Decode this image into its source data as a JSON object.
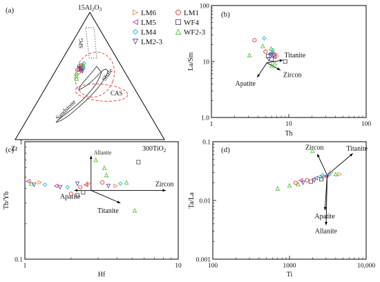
{
  "colors": {
    "LM6": "#f28c3a",
    "LM1": "#e03a3a",
    "LM5": "#c2378a",
    "WF4": "#555555",
    "LM4": "#1fb6d8",
    "LM2-3": "#6a4aa8",
    "WF2-3": "#5bbf3a",
    "field": "#333333",
    "dashed": "#e03a3a",
    "dotted": "#555555"
  },
  "legend": {
    "entries": [
      {
        "label": "LM6",
        "marker": "triangle-right",
        "color": "#f28c3a"
      },
      {
        "label": "LM1",
        "marker": "circle",
        "color": "#e03a3a"
      },
      {
        "label": "LM5",
        "marker": "triangle-left",
        "color": "#c2378a"
      },
      {
        "label": "WF4",
        "marker": "square",
        "color": "#555555"
      },
      {
        "label": "LM4",
        "marker": "diamond",
        "color": "#1fb6d8"
      },
      {
        "label": "WF2-3",
        "marker": "triangle-up",
        "color": "#5bbf3a"
      },
      {
        "label": "LM2-3",
        "marker": "triangle-down",
        "color": "#6a4aa8"
      }
    ]
  },
  "chart_data": [
    {
      "panel": "(a)",
      "type": "ternary",
      "apices": {
        "top": "15Al2O3",
        "left": "Zr",
        "right": "300TiO2"
      },
      "fields": [
        "SPG",
        "Shale",
        "CAS",
        "Sandstone"
      ],
      "samples": [
        {
          "series": "LM6",
          "points": [
            [
              58,
              26,
              16
            ],
            [
              57,
              27,
              16
            ],
            [
              55,
              28,
              17
            ],
            [
              56,
              26,
              18
            ]
          ]
        },
        {
          "series": "LM1",
          "points": [
            [
              55,
              30,
              15
            ],
            [
              53,
              31,
              16
            ]
          ]
        },
        {
          "series": "LM5",
          "points": [
            [
              57,
              28,
              15
            ],
            [
              54,
              29,
              17
            ],
            [
              56,
              29,
              15
            ]
          ]
        },
        {
          "series": "WF4",
          "points": [
            [
              58,
              27,
              15
            ],
            [
              56,
              28,
              16
            ]
          ]
        },
        {
          "series": "LM4",
          "points": [
            [
              60,
              24,
              16
            ],
            [
              57,
              26,
              17
            ]
          ]
        },
        {
          "series": "LM2-3",
          "points": [
            [
              56,
              29,
              15
            ],
            [
              54,
              28,
              18
            ]
          ]
        },
        {
          "series": "WF2-3",
          "points": [
            [
              52,
              33,
              15
            ],
            [
              50,
              34,
              16
            ],
            [
              59,
              25,
              16
            ],
            [
              48,
              35,
              17
            ]
          ]
        }
      ]
    },
    {
      "panel": "(b)",
      "type": "scatter",
      "x_scale": "log",
      "y_scale": "log",
      "xlabel": "Th",
      "ylabel": "La/Sm",
      "xlim": [
        1,
        100
      ],
      "ylim": [
        1,
        100
      ],
      "xticks": [
        "1",
        "10",
        "100"
      ],
      "yticks": [
        "1.0",
        "10",
        "100"
      ],
      "vectors": [
        {
          "label": "Titanite",
          "from": [
            5.2,
            9.5
          ],
          "to": [
            8.4,
            10.6
          ]
        },
        {
          "label": "Zircon",
          "from": [
            5.2,
            9.5
          ],
          "to": [
            7.8,
            7.0
          ]
        },
        {
          "label": "Apatite",
          "from": [
            5.2,
            9.5
          ],
          "to": [
            3.9,
            5.2
          ]
        }
      ],
      "series": [
        {
          "name": "LM6",
          "points": [
            [
              6.8,
              13.5
            ],
            [
              7.0,
              12.5
            ],
            [
              6.3,
              14.5
            ]
          ]
        },
        {
          "name": "LM1",
          "points": [
            [
              3.6,
              24
            ],
            [
              5.0,
              15
            ]
          ]
        },
        {
          "name": "LM5",
          "points": [
            [
              6.5,
              12
            ],
            [
              5.8,
              14
            ]
          ]
        },
        {
          "name": "WF4",
          "points": [
            [
              6.0,
              11
            ],
            [
              9.0,
              10
            ],
            [
              5.4,
              12.5
            ]
          ]
        },
        {
          "name": "LM4",
          "points": [
            [
              4.8,
              26
            ],
            [
              6.2,
              16
            ],
            [
              5.7,
              13.5
            ],
            [
              6.1,
              14.2
            ]
          ]
        },
        {
          "name": "LM2-3",
          "points": [
            [
              6.0,
              13
            ],
            [
              5.5,
              11
            ],
            [
              6.4,
              12.8
            ]
          ]
        },
        {
          "name": "WF2-3",
          "points": [
            [
              3.1,
              13
            ],
            [
              4.6,
              19
            ],
            [
              6.0,
              8.5
            ],
            [
              6.6,
              9.3
            ],
            [
              5.9,
              17
            ]
          ]
        }
      ]
    },
    {
      "panel": "(c)",
      "type": "scatter",
      "x_scale": "log",
      "y_scale": "log",
      "xlabel": "Hf",
      "ylabel": "Tb/Yb",
      "xlim": [
        1,
        10
      ],
      "ylim": [
        0.1,
        1
      ],
      "xticks": [
        "1",
        "10"
      ],
      "yticks": [
        "0.1",
        "1"
      ],
      "vectors": [
        {
          "label": "Allanite",
          "from": [
            2.7,
            0.385
          ],
          "to": [
            2.7,
            0.76
          ]
        },
        {
          "label": "Apatite",
          "from": [
            2.7,
            0.385
          ],
          "to": [
            2.1,
            0.385
          ]
        },
        {
          "label": "Titanite",
          "from": [
            2.7,
            0.385
          ],
          "to": [
            4.2,
            0.3
          ]
        },
        {
          "label": "Zircon",
          "from": [
            2.7,
            0.385
          ],
          "to": [
            8.3,
            0.385
          ]
        }
      ],
      "series": [
        {
          "name": "LM6",
          "points": [
            [
              1.25,
              0.45
            ],
            [
              2.6,
              0.44
            ],
            [
              3.9,
              0.42
            ]
          ]
        },
        {
          "name": "LM1",
          "points": [
            [
              2.3,
              0.41
            ],
            [
              2.0,
              0.36
            ],
            [
              3.2,
              0.45
            ]
          ]
        },
        {
          "name": "LM5",
          "points": [
            [
              1.05,
              0.46
            ],
            [
              1.6,
              0.42
            ],
            [
              2.5,
              0.43
            ]
          ]
        },
        {
          "name": "WF4",
          "points": [
            [
              2.2,
              0.35
            ],
            [
              5.5,
              0.67
            ],
            [
              2.4,
              0.37
            ]
          ]
        },
        {
          "name": "LM4",
          "points": [
            [
              1.35,
              0.43
            ],
            [
              1.9,
              0.41
            ],
            [
              4.2,
              0.44
            ]
          ]
        },
        {
          "name": "LM2-3",
          "points": [
            [
              1.15,
              0.43
            ],
            [
              1.7,
              0.41
            ],
            [
              2.2,
              0.44
            ],
            [
              3.5,
              0.42
            ]
          ]
        },
        {
          "name": "WF2-3",
          "points": [
            [
              1.1,
              0.44
            ],
            [
              2.9,
              0.7
            ],
            [
              3.4,
              0.52
            ],
            [
              4.6,
              0.45
            ],
            [
              5.2,
              0.26
            ],
            [
              3.3,
              0.6
            ]
          ]
        }
      ]
    },
    {
      "panel": "(d)",
      "type": "scatter",
      "x_scale": "log",
      "y_scale": "log",
      "xlabel": "Ti",
      "ylabel": "Ta/La",
      "xlim": [
        100,
        10000
      ],
      "ylim": [
        0.001,
        0.1
      ],
      "xticks": [
        "100",
        "1000",
        "10,000"
      ],
      "yticks": [
        "0.001",
        "0.01",
        "0.1"
      ],
      "vectors": [
        {
          "label": "Zircon",
          "from": [
            3100,
            0.027
          ],
          "to": [
            2300,
            0.062
          ]
        },
        {
          "label": "Titanite",
          "from": [
            3100,
            0.027
          ],
          "to": [
            6700,
            0.063
          ]
        },
        {
          "label": "Apatite",
          "from": [
            3100,
            0.027
          ],
          "to": [
            2900,
            0.0068
          ]
        },
        {
          "label": "Allanite",
          "from": [
            3100,
            0.027
          ],
          "to": [
            3000,
            0.0038
          ]
        }
      ],
      "series": [
        {
          "name": "LM6",
          "points": [
            [
              3500,
              0.03
            ],
            [
              4500,
              0.028
            ],
            [
              2800,
              0.025
            ]
          ]
        },
        {
          "name": "LM1",
          "points": [
            [
              1200,
              0.02
            ],
            [
              1700,
              0.022
            ]
          ]
        },
        {
          "name": "LM5",
          "points": [
            [
              1400,
              0.022
            ],
            [
              2200,
              0.024
            ],
            [
              3000,
              0.026
            ]
          ]
        },
        {
          "name": "WF4",
          "points": [
            [
              1900,
              0.021
            ],
            [
              2600,
              0.023
            ]
          ]
        },
        {
          "name": "LM4",
          "points": [
            [
              2700,
              0.027
            ],
            [
              3300,
              0.028
            ],
            [
              2500,
              0.025
            ]
          ]
        },
        {
          "name": "LM2-3",
          "points": [
            [
              1500,
              0.02
            ],
            [
              2100,
              0.022
            ],
            [
              3100,
              0.025
            ]
          ]
        },
        {
          "name": "WF2-3",
          "points": [
            [
              700,
              0.016
            ],
            [
              1000,
              0.018
            ],
            [
              2000,
              0.07
            ],
            [
              4000,
              0.028
            ],
            [
              1300,
              0.019
            ]
          ]
        }
      ]
    }
  ]
}
